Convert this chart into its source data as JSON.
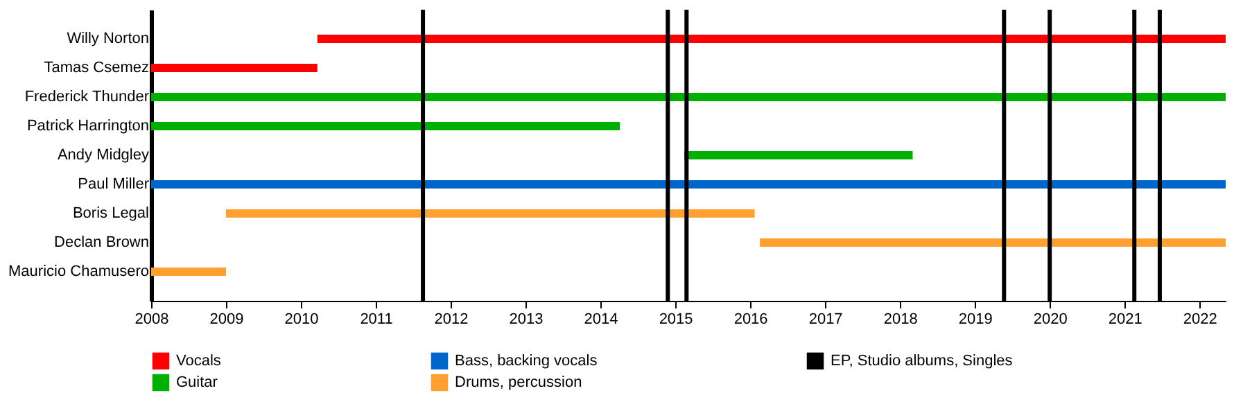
{
  "chart_data": {
    "type": "bar",
    "orientation": "horizontal",
    "categories": [
      "Willy Norton",
      "Tamas Csemez",
      "Frederick Thunder",
      "Patrick Harrington",
      "Andy Midgley",
      "Paul Miller",
      "Boris Legal",
      "Declan Brown",
      "Mauricio Chamusero"
    ],
    "series": [
      {
        "name": "Vocals",
        "color": "#ff0000",
        "values": [
          12.13,
          2.22,
          null,
          null,
          null,
          null,
          null,
          null,
          null
        ],
        "base": [
          2010.22,
          2008,
          null,
          null,
          null,
          null,
          null,
          null,
          null
        ]
      },
      {
        "name": "Guitar",
        "color": "#00b000",
        "values": [
          null,
          null,
          14.35,
          6.26,
          3.05,
          null,
          null,
          null,
          null
        ],
        "base": [
          null,
          null,
          2008,
          2008,
          2015.12,
          null,
          null,
          null,
          null
        ]
      },
      {
        "name": "Bass, backing vocals",
        "color": "#0066cc",
        "values": [
          null,
          null,
          null,
          null,
          null,
          14.35,
          null,
          null,
          null
        ],
        "base": [
          null,
          null,
          null,
          null,
          null,
          2008,
          null,
          null,
          null
        ]
      },
      {
        "name": "Drums, percussion",
        "color": "#ffa030",
        "values": [
          null,
          null,
          null,
          null,
          null,
          null,
          7.06,
          6.22,
          1.0
        ],
        "base": [
          null,
          null,
          null,
          null,
          null,
          null,
          2009,
          2016.13,
          2008
        ]
      }
    ],
    "ref_lines": [
      {
        "axis": "x",
        "value": 2011.63,
        "label": "EP, Studio albums, Singles",
        "color": "#000000"
      },
      {
        "axis": "x",
        "value": 2014.9,
        "color": "#000000"
      },
      {
        "axis": "x",
        "value": 2015.15,
        "color": "#000000"
      },
      {
        "axis": "x",
        "value": 2019.39,
        "color": "#000000"
      },
      {
        "axis": "x",
        "value": 2020.0,
        "color": "#000000"
      },
      {
        "axis": "x",
        "value": 2021.13,
        "color": "#000000"
      },
      {
        "axis": "x",
        "value": 2021.47,
        "color": "#000000"
      }
    ],
    "xlim": [
      2008,
      2022.35
    ],
    "xticks": [
      2008,
      2009,
      2010,
      2011,
      2012,
      2013,
      2014,
      2015,
      2016,
      2017,
      2018,
      2019,
      2020,
      2021,
      2022
    ],
    "grid": false,
    "legend": "bottom"
  }
}
